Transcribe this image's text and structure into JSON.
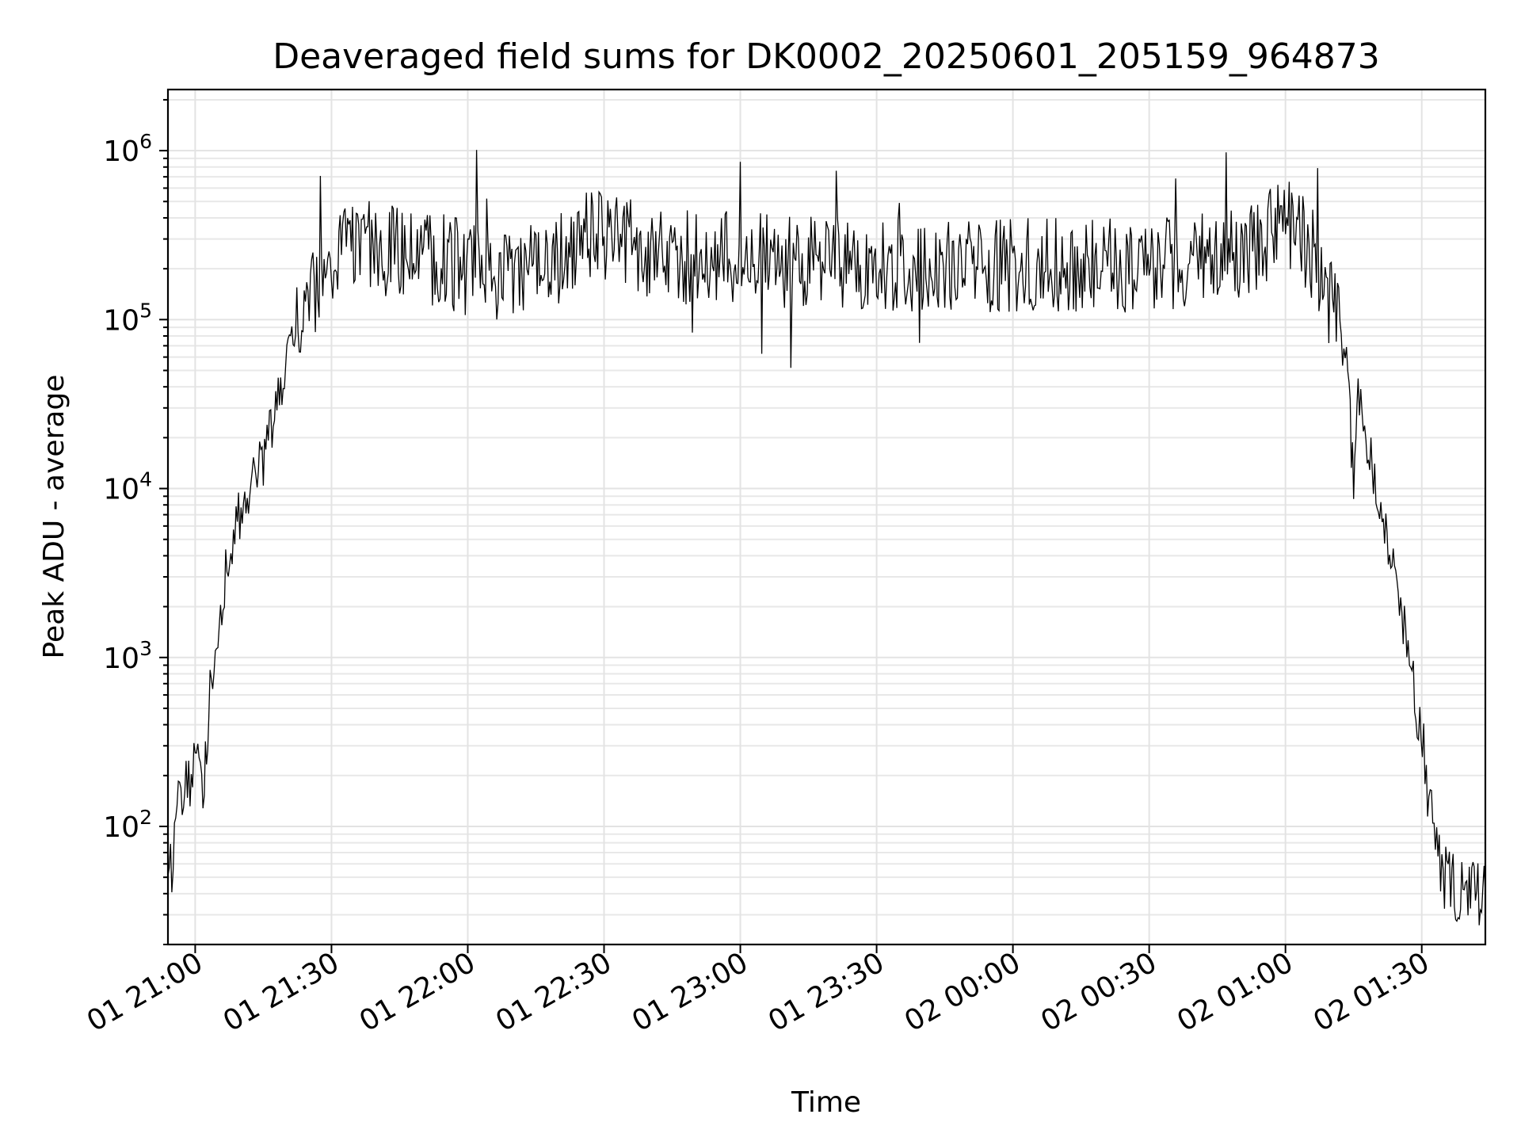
{
  "chart_data": {
    "type": "line",
    "title": "Deaveraged field sums for DK0002_20250601_205159_964873",
    "xlabel": "Time",
    "ylabel": "Peak ADU - average",
    "yscale": "log",
    "grid": true,
    "xlim": [
      "2025-06-01 20:54",
      "2025-06-02 01:44"
    ],
    "ylim": [
      20,
      2300000
    ],
    "x_ticks": [
      {
        "value": "2025-06-01 21:00",
        "label": "01 21:00"
      },
      {
        "value": "2025-06-01 21:30",
        "label": "01 21:30"
      },
      {
        "value": "2025-06-01 22:00",
        "label": "01 22:00"
      },
      {
        "value": "2025-06-01 22:30",
        "label": "01 22:30"
      },
      {
        "value": "2025-06-01 23:00",
        "label": "01 23:00"
      },
      {
        "value": "2025-06-01 23:30",
        "label": "01 23:30"
      },
      {
        "value": "2025-06-02 00:00",
        "label": "02 00:00"
      },
      {
        "value": "2025-06-02 00:30",
        "label": "02 00:30"
      },
      {
        "value": "2025-06-02 01:00",
        "label": "02 01:00"
      },
      {
        "value": "2025-06-02 01:30",
        "label": "02 01:30"
      }
    ],
    "y_ticks": [
      {
        "value": 100,
        "base": "10",
        "exp": "2"
      },
      {
        "value": 1000,
        "base": "10",
        "exp": "3"
      },
      {
        "value": 10000,
        "base": "10",
        "exp": "4"
      },
      {
        "value": 100000,
        "base": "10",
        "exp": "5"
      },
      {
        "value": 1000000,
        "base": "10",
        "exp": "6"
      }
    ],
    "series": [
      {
        "color": "#000000",
        "points": [
          [
            "2025-06-01 20:54",
            40
          ],
          [
            "2025-06-01 20:56",
            120
          ],
          [
            "2025-06-01 20:58",
            180
          ],
          [
            "2025-06-01 21:00",
            200
          ],
          [
            "2025-06-01 21:02",
            200
          ],
          [
            "2025-06-01 21:03",
            500
          ],
          [
            "2025-06-01 21:05",
            1500
          ],
          [
            "2025-06-01 21:07",
            3500
          ],
          [
            "2025-06-01 21:09",
            6000
          ],
          [
            "2025-06-01 21:12",
            10000
          ],
          [
            "2025-06-01 21:15",
            15000
          ],
          [
            "2025-06-01 21:18",
            30000
          ],
          [
            "2025-06-01 21:21",
            70000
          ],
          [
            "2025-06-01 21:24",
            110000
          ],
          [
            "2025-06-01 21:27",
            150000
          ],
          [
            "2025-06-01 21:30",
            200000
          ],
          [
            "2025-06-01 21:33",
            250000
          ],
          [
            "2025-06-01 21:36",
            280000
          ],
          [
            "2025-06-01 21:40",
            270000
          ],
          [
            "2025-06-01 21:45",
            250000
          ],
          [
            "2025-06-01 21:50",
            230000
          ],
          [
            "2025-06-01 21:55",
            220000
          ],
          [
            "2025-06-01 22:00",
            200000
          ],
          [
            "2025-06-01 22:05",
            190000
          ],
          [
            "2025-06-01 22:10",
            200000
          ],
          [
            "2025-06-01 22:15",
            200000
          ],
          [
            "2025-06-01 22:20",
            230000
          ],
          [
            "2025-06-01 22:25",
            300000
          ],
          [
            "2025-06-01 22:30",
            320000
          ],
          [
            "2025-06-01 22:35",
            280000
          ],
          [
            "2025-06-01 22:40",
            250000
          ],
          [
            "2025-06-01 22:50",
            230000
          ],
          [
            "2025-06-01 23:00",
            230000
          ],
          [
            "2025-06-01 23:10",
            220000
          ],
          [
            "2025-06-01 23:20",
            210000
          ],
          [
            "2025-06-01 23:30",
            210000
          ],
          [
            "2025-06-01 23:40",
            200000
          ],
          [
            "2025-06-01 23:50",
            210000
          ],
          [
            "2025-06-02 00:00",
            210000
          ],
          [
            "2025-06-02 00:10",
            210000
          ],
          [
            "2025-06-02 00:20",
            210000
          ],
          [
            "2025-06-02 00:30",
            210000
          ],
          [
            "2025-06-02 00:40",
            220000
          ],
          [
            "2025-06-02 00:50",
            250000
          ],
          [
            "2025-06-02 00:55",
            300000
          ],
          [
            "2025-06-02 01:00",
            350000
          ],
          [
            "2025-06-02 01:03",
            330000
          ],
          [
            "2025-06-02 01:06",
            250000
          ],
          [
            "2025-06-02 01:09",
            150000
          ],
          [
            "2025-06-02 01:12",
            80000
          ],
          [
            "2025-06-02 01:14",
            40000
          ],
          [
            "2025-06-02 01:15",
            9000
          ],
          [
            "2025-06-02 01:16",
            40000
          ],
          [
            "2025-06-02 01:18",
            20000
          ],
          [
            "2025-06-02 01:21",
            8000
          ],
          [
            "2025-06-02 01:24",
            3000
          ],
          [
            "2025-06-02 01:27",
            1200
          ],
          [
            "2025-06-02 01:29",
            500
          ],
          [
            "2025-06-02 01:31",
            200
          ],
          [
            "2025-06-02 01:33",
            80
          ],
          [
            "2025-06-02 01:35",
            50
          ],
          [
            "2025-06-02 01:38",
            40
          ],
          [
            "2025-06-02 01:44",
            40
          ]
        ]
      }
    ]
  }
}
